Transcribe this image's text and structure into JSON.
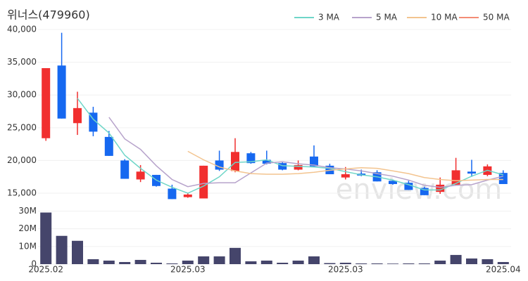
{
  "chart_data": [
    {
      "type": "candlestick",
      "title": "위너스(479960)",
      "watermark": "enview.com",
      "open": [
        23400,
        34500,
        25700,
        27300,
        23600,
        20000,
        17100,
        17800,
        15700,
        14400,
        14200,
        20000,
        18400,
        21100,
        20100,
        19600,
        18600,
        20600,
        19200,
        17400,
        18000,
        18200,
        16900,
        16600,
        15800,
        15200,
        16300,
        18300,
        17800,
        18100
      ],
      "high": [
        34100,
        39500,
        30500,
        28200,
        24500,
        20200,
        19300,
        17800,
        16300,
        15000,
        19200,
        21500,
        23400,
        21300,
        21500,
        19800,
        20000,
        22300,
        19500,
        19000,
        18600,
        18500,
        17100,
        16900,
        16000,
        17400,
        20400,
        20100,
        19400,
        18500
      ],
      "low": [
        23000,
        26400,
        23900,
        23700,
        20700,
        17200,
        16700,
        16000,
        14100,
        14300,
        14200,
        18400,
        18200,
        19500,
        19400,
        18500,
        18500,
        19100,
        17900,
        17100,
        17600,
        16800,
        16300,
        15500,
        14700,
        14900,
        16200,
        17500,
        17600,
        16400
      ],
      "close": [
        34100,
        26400,
        28000,
        24400,
        20700,
        17200,
        18300,
        16100,
        14100,
        14800,
        19200,
        18600,
        21300,
        19600,
        19500,
        18600,
        19300,
        19100,
        17900,
        17900,
        17700,
        16800,
        16400,
        15500,
        14700,
        16300,
        18500,
        18000,
        19100,
        16400
      ],
      "up_color": "#f12f2f",
      "down_color": "#1668f0",
      "ylim": [
        13180,
        40750
      ],
      "yticks": [
        {
          "value": 15000,
          "label": "15,000"
        },
        {
          "value": 20000,
          "label": "20,000"
        },
        {
          "value": 25000,
          "label": "25,000"
        },
        {
          "value": 30000,
          "label": "30,000"
        },
        {
          "value": 35000,
          "label": "35,000"
        },
        {
          "value": 40000,
          "label": "40,000"
        }
      ],
      "grid": true,
      "legend": "top-right",
      "series": [
        {
          "name": "3 MA",
          "color": "#6fd6c8",
          "values": [
            null,
            null,
            29500,
            26300,
            24200,
            20800,
            18800,
            17000,
            15900,
            15000,
            16100,
            17500,
            19700,
            19800,
            20100,
            19200,
            19100,
            19000,
            18800,
            18300,
            17800,
            17500,
            17000,
            16300,
            15500,
            15500,
            16500,
            17600,
            18500,
            17800
          ]
        },
        {
          "name": "5 MA",
          "color": "#b7a3cb",
          "values": [
            null,
            null,
            null,
            null,
            26600,
            23300,
            21700,
            19200,
            17100,
            16000,
            16500,
            16600,
            16600,
            18100,
            19600,
            19800,
            19500,
            19300,
            18900,
            18700,
            18400,
            18000,
            17600,
            17000,
            16200,
            15900,
            16200,
            16300,
            17000,
            17600
          ]
        },
        {
          "name": "10 MA",
          "color": "#f3c48f",
          "values": [
            null,
            null,
            null,
            null,
            null,
            null,
            null,
            null,
            null,
            21400,
            20100,
            19000,
            18400,
            18000,
            17900,
            17900,
            18000,
            18200,
            18500,
            18700,
            18900,
            18800,
            18400,
            18000,
            17400,
            17100,
            16900,
            17000,
            17100,
            17100
          ]
        },
        {
          "name": "50 MA",
          "color": "#f48c75",
          "values": [
            null,
            null,
            null,
            null,
            null,
            null,
            null,
            null,
            null,
            null,
            null,
            null,
            null,
            null,
            null,
            null,
            null,
            null,
            null,
            null,
            null,
            null,
            null,
            null,
            null,
            null,
            null,
            null,
            null,
            null
          ]
        }
      ]
    },
    {
      "type": "bar",
      "categories": [
        "2025.02",
        null,
        null,
        null,
        null,
        null,
        null,
        null,
        null,
        "2025.03",
        null,
        null,
        null,
        null,
        null,
        null,
        null,
        null,
        null,
        "2025.03",
        null,
        null,
        null,
        null,
        null,
        null,
        null,
        null,
        null,
        "2025.04"
      ],
      "values": [
        29200000,
        16000000,
        13200000,
        2800000,
        2000000,
        1200000,
        2400000,
        800000,
        400000,
        2000000,
        4400000,
        4400000,
        9200000,
        1600000,
        2000000,
        800000,
        2000000,
        4400000,
        600000,
        800000,
        400000,
        400000,
        300000,
        400000,
        400000,
        2000000,
        5200000,
        3200000,
        2800000,
        1200000
      ],
      "color": "#45456b",
      "ylim": [
        0,
        31000000
      ],
      "yticks": [
        0,
        {
          "value": 10000000,
          "label": "10M"
        },
        {
          "value": 20000000,
          "label": "20M"
        },
        {
          "value": 30000000,
          "label": "30M"
        }
      ],
      "grid": true
    }
  ]
}
